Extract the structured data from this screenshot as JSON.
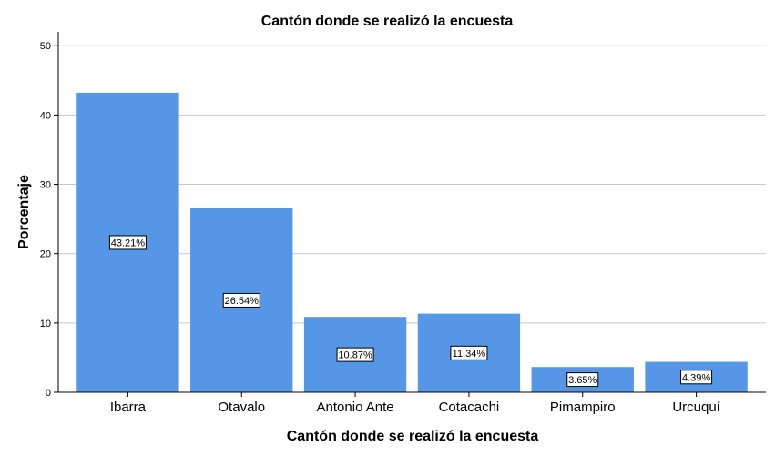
{
  "chart_data": {
    "type": "bar",
    "title": "Cantón donde se realizó la encuesta",
    "xlabel": "Cantón donde se realizó la encuesta",
    "ylabel": "Porcentaje",
    "categories": [
      "Ibarra",
      "Otavalo",
      "Antonio Ante",
      "Cotacachi",
      "Pimampiro",
      "Urcuquí"
    ],
    "values": [
      43.21,
      26.54,
      10.87,
      11.34,
      3.65,
      4.39
    ],
    "data_labels": [
      "43.21%",
      "26.54%",
      "10.87%",
      "11.34%",
      "3.65%",
      "4.39%"
    ],
    "ylim": [
      0,
      52
    ],
    "yticks": [
      0,
      10,
      20,
      30,
      40,
      50
    ],
    "grid": true,
    "legend": "none",
    "colors": {
      "bar": "#5596e6",
      "grid": "#c8c8c8",
      "axis": "#000000"
    }
  }
}
